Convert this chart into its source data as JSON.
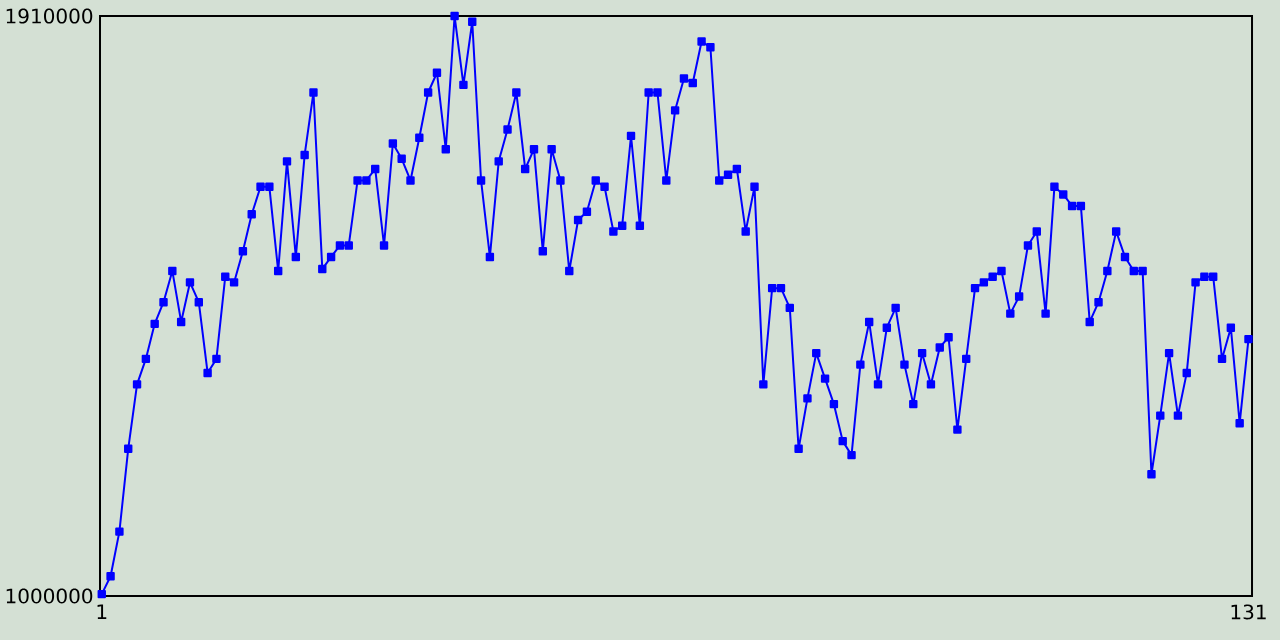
{
  "chart_data": {
    "type": "line",
    "x": [
      1,
      2,
      3,
      4,
      5,
      6,
      7,
      8,
      9,
      10,
      11,
      12,
      13,
      14,
      15,
      16,
      17,
      18,
      19,
      20,
      21,
      22,
      23,
      24,
      25,
      26,
      27,
      28,
      29,
      30,
      31,
      32,
      33,
      34,
      35,
      36,
      37,
      38,
      39,
      40,
      41,
      42,
      43,
      44,
      45,
      46,
      47,
      48,
      49,
      50,
      51,
      52,
      53,
      54,
      55,
      56,
      57,
      58,
      59,
      60,
      61,
      62,
      63,
      64,
      65,
      66,
      67,
      68,
      69,
      70,
      71,
      72,
      73,
      74,
      75,
      76,
      77,
      78,
      79,
      80,
      81,
      82,
      83,
      84,
      85,
      86,
      87,
      88,
      89,
      90,
      91,
      92,
      93,
      94,
      95,
      96,
      97,
      98,
      99,
      100,
      101,
      102,
      103,
      104,
      105,
      106,
      107,
      108,
      109,
      110,
      111,
      112,
      113,
      114,
      115,
      116,
      117,
      118,
      119,
      120,
      121,
      122,
      123,
      124,
      125,
      126,
      127,
      128,
      129,
      130,
      131
    ],
    "series": [
      {
        "color": "#0000ff",
        "values": [
          1003000,
          1031000,
          1101000,
          1231000,
          1332000,
          1372000,
          1427000,
          1461000,
          1510000,
          1430000,
          1492000,
          1461000,
          1350000,
          1372000,
          1501000,
          1492000,
          1541000,
          1599000,
          1642000,
          1642000,
          1510000,
          1682000,
          1532000,
          1692000,
          1790000,
          1513000,
          1532000,
          1550000,
          1550000,
          1652000,
          1652000,
          1670000,
          1550000,
          1710000,
          1686000,
          1652000,
          1719000,
          1790000,
          1821000,
          1701000,
          1910000,
          1802000,
          1901000,
          1652000,
          1532000,
          1682000,
          1732000,
          1790000,
          1670000,
          1701000,
          1541000,
          1701000,
          1652000,
          1510000,
          1590000,
          1603000,
          1652000,
          1642000,
          1572000,
          1581000,
          1722000,
          1581000,
          1790000,
          1790000,
          1652000,
          1762000,
          1812000,
          1805000,
          1870000,
          1861000,
          1652000,
          1661000,
          1670000,
          1572000,
          1642000,
          1332000,
          1483000,
          1483000,
          1452000,
          1231000,
          1310000,
          1381000,
          1341000,
          1301000,
          1243000,
          1221000,
          1363000,
          1430000,
          1332000,
          1421000,
          1452000,
          1363000,
          1301000,
          1381000,
          1332000,
          1390000,
          1406000,
          1261000,
          1372000,
          1483000,
          1492000,
          1501000,
          1510000,
          1443000,
          1470000,
          1550000,
          1572000,
          1443000,
          1642000,
          1630000,
          1612000,
          1612000,
          1430000,
          1461000,
          1510000,
          1572000,
          1532000,
          1510000,
          1510000,
          1191000,
          1283000,
          1381000,
          1283000,
          1350000,
          1492000,
          1501000,
          1501000,
          1372000,
          1421000,
          1271000,
          1403000
        ]
      }
    ],
    "xlim": [
      0.8,
      131.4
    ],
    "ylim": [
      1000000,
      1910000
    ],
    "xticks": [
      1,
      131
    ],
    "yticks": [
      1000000,
      1910000
    ],
    "marker": "square",
    "line_style": "solid",
    "grid": false
  }
}
